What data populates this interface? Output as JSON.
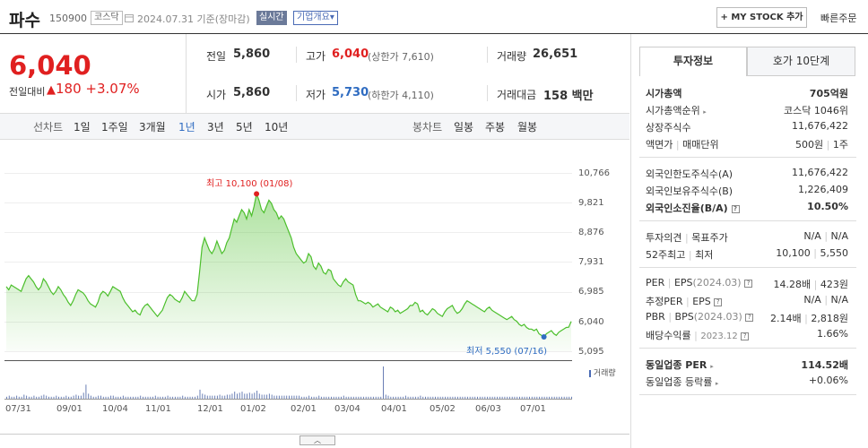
{
  "stock": {
    "name": "파수",
    "code": "150900",
    "market": "코스닥",
    "date": "2024.07.31",
    "basis": "기준(장마감)",
    "realtime": "실시간",
    "corp_overview": "기업개요",
    "corp_overview_arrow": "▾",
    "mystock": "+ MY STOCK 추가",
    "quick_order": "빠른주문",
    "price": "6,040",
    "change_label": "전일대비",
    "change_arrow": "▲",
    "change": "180",
    "change_pct": "+3.07%"
  },
  "summary": {
    "prev_label": "전일",
    "prev": "5,860",
    "high_label": "고가",
    "high": "6,040",
    "upper_label": "(상한가",
    "upper": "7,610",
    "upper_close": ")",
    "volume_label": "거래량",
    "volume": "26,651",
    "open_label": "시가",
    "open": "5,860",
    "low_label": "저가",
    "low": "5,730",
    "lower_label": "(하한가",
    "lower": "4,110",
    "lower_close": ")",
    "value_label": "거래대금",
    "value": "158",
    "value_unit": "백만"
  },
  "tabs": {
    "line_chart": "선차트",
    "periods": [
      "1일",
      "1주일",
      "3개월",
      "1년",
      "3년",
      "5년",
      "10년"
    ],
    "active_period": "1년",
    "candle_chart": "봉차트",
    "candles": [
      "일봉",
      "주봉",
      "월봉"
    ]
  },
  "chart_data": {
    "type": "area",
    "x_labels": [
      "07/31",
      "09/01",
      "10/04",
      "11/01",
      "12/01",
      "01/02",
      "02/01",
      "03/04",
      "04/01",
      "05/02",
      "06/03",
      "07/01"
    ],
    "y_ticks": [
      10766,
      9821,
      8876,
      7931,
      6985,
      6040,
      5095
    ],
    "y_tick_labels": [
      "10,766",
      "9,821",
      "8,876",
      "7,931",
      "6,985",
      "6,040",
      "5,095"
    ],
    "ylim": [
      5095,
      10766
    ],
    "values": [
      7150,
      7050,
      7200,
      7150,
      7100,
      7050,
      7000,
      7200,
      7400,
      7500,
      7400,
      7300,
      7150,
      7050,
      7150,
      7400,
      7300,
      7150,
      7000,
      6900,
      7000,
      7150,
      7050,
      6900,
      6800,
      6650,
      6550,
      6700,
      6900,
      7050,
      7000,
      6950,
      6850,
      6700,
      6600,
      6550,
      6500,
      6650,
      6900,
      7000,
      6950,
      6850,
      7000,
      7150,
      7100,
      7050,
      7000,
      6800,
      6650,
      6550,
      6450,
      6350,
      6400,
      6300,
      6250,
      6450,
      6550,
      6600,
      6500,
      6400,
      6300,
      6200,
      6300,
      6400,
      6600,
      6800,
      6900,
      6850,
      6750,
      6700,
      6650,
      6800,
      7000,
      6900,
      6800,
      6700,
      6700,
      6900,
      7600,
      8400,
      8700,
      8500,
      8300,
      8200,
      8350,
      8600,
      8400,
      8200,
      8300,
      8550,
      8700,
      9000,
      9300,
      9200,
      9400,
      9600,
      9500,
      9300,
      9600,
      9400,
      9700,
      10100,
      9900,
      9600,
      9500,
      9700,
      9900,
      9800,
      9600,
      9500,
      9300,
      9400,
      9300,
      9100,
      8900,
      8700,
      8400,
      8200,
      8100,
      8000,
      7900,
      7950,
      8200,
      8100,
      7800,
      7700,
      7900,
      7800,
      7600,
      7550,
      7700,
      7650,
      7400,
      7300,
      7200,
      7150,
      7300,
      7400,
      7300,
      7250,
      7200,
      6900,
      6700,
      6700,
      6650,
      6600,
      6650,
      6600,
      6500,
      6550,
      6600,
      6500,
      6450,
      6400,
      6350,
      6500,
      6450,
      6350,
      6400,
      6300,
      6350,
      6400,
      6450,
      6550,
      6550,
      6650,
      6600,
      6350,
      6400,
      6300,
      6250,
      6350,
      6450,
      6400,
      6300,
      6250,
      6200,
      6350,
      6450,
      6500,
      6550,
      6400,
      6300,
      6350,
      6450,
      6600,
      6700,
      6650,
      6600,
      6550,
      6500,
      6450,
      6400,
      6350,
      6450,
      6500,
      6400,
      6350,
      6300,
      6250,
      6200,
      6150,
      6100,
      6150,
      6200,
      6100,
      6050,
      5950,
      5900,
      5950,
      5850,
      5800,
      5800,
      5750,
      5800,
      5650,
      5600,
      5550,
      5650,
      5700,
      5750,
      5650,
      5600,
      5700,
      5750,
      5800,
      5850,
      5860,
      6040
    ],
    "volume": [
      2,
      3,
      2,
      2,
      3,
      2,
      2,
      4,
      3,
      2,
      2,
      3,
      2,
      2,
      3,
      4,
      3,
      2,
      2,
      2,
      3,
      2,
      2,
      2,
      3,
      2,
      2,
      3,
      4,
      3,
      3,
      6,
      14,
      5,
      3,
      2,
      2,
      3,
      3,
      2,
      2,
      2,
      3,
      3,
      2,
      2,
      2,
      3,
      2,
      2,
      2,
      2,
      2,
      2,
      3,
      2,
      2,
      2,
      2,
      2,
      3,
      2,
      2,
      2,
      2,
      3,
      2,
      2,
      2,
      2,
      2,
      3,
      2,
      2,
      2,
      2,
      2,
      3,
      9,
      5,
      4,
      3,
      3,
      3,
      3,
      3,
      4,
      3,
      3,
      4,
      4,
      5,
      7,
      5,
      6,
      7,
      5,
      5,
      6,
      5,
      6,
      8,
      5,
      4,
      4,
      4,
      5,
      4,
      3,
      3,
      3,
      3,
      3,
      3,
      3,
      3,
      3,
      3,
      3,
      2,
      2,
      2,
      3,
      2,
      2,
      2,
      3,
      2,
      2,
      2,
      2,
      2,
      2,
      2,
      2,
      2,
      3,
      2,
      2,
      2,
      2,
      2,
      2,
      2,
      2,
      2,
      2,
      2,
      2,
      2,
      2,
      2,
      32,
      4,
      3,
      2,
      2,
      2,
      2,
      2,
      2,
      3,
      2,
      2,
      2,
      2,
      2,
      3,
      2,
      2,
      2,
      2,
      2,
      2,
      2,
      2,
      2,
      2,
      2,
      2,
      2,
      2,
      2,
      2,
      2,
      2,
      2,
      2,
      2,
      2,
      2,
      2,
      2,
      2,
      2,
      2,
      2,
      2,
      2,
      2,
      2,
      2,
      2,
      2,
      2,
      2,
      2,
      2,
      2,
      2,
      2,
      2,
      2,
      2,
      2,
      2,
      2,
      2,
      2,
      2,
      2,
      2,
      2,
      2,
      2,
      2,
      2,
      2,
      2
    ],
    "high_label": "최고",
    "high_value": "10,100",
    "high_date": "(01/08)",
    "low_label": "최저",
    "low_value": "5,550",
    "low_date": "(07/16)",
    "volume_legend": "거래량",
    "series_color": "#4cbf2c",
    "grid": true
  },
  "right_panel": {
    "tabs": [
      "투자정보",
      "호가 10단계"
    ],
    "active_tab": "투자정보",
    "rows1": [
      {
        "label": "시가총액",
        "value": "705억원"
      },
      {
        "label": "시가총액순위",
        "value": "코스닥 1046위"
      },
      {
        "label": "상장주식수",
        "value": "11,676,422"
      },
      {
        "label": "액면가",
        "label2": "매매단위",
        "value": "500원",
        "value2": "1주"
      }
    ],
    "rows2": [
      {
        "label": "외국인한도주식수(A)",
        "value": "11,676,422"
      },
      {
        "label": "외국인보유주식수(B)",
        "value": "1,226,409"
      },
      {
        "label": "외국인소진율(B/A)",
        "value": "10.50%"
      }
    ],
    "rows3": [
      {
        "label": "투자의견",
        "label2": "목표주가",
        "value": "N/A",
        "value2": "N/A"
      },
      {
        "label": "52주최고",
        "label2": "최저",
        "value": "10,100",
        "value2": "5,550"
      }
    ],
    "rows4": [
      {
        "label": "PER",
        "label2": "EPS",
        "sub": "(2024.03)",
        "value": "14.28배",
        "value2": "423원"
      },
      {
        "label": "추정PER",
        "label2": "EPS",
        "value": "N/A",
        "value2": "N/A"
      },
      {
        "label": "PBR",
        "label2": "BPS",
        "sub": "(2024.03)",
        "value": "2.14배",
        "value2": "2,818원"
      },
      {
        "label": "배당수익률",
        "sub": "2023.12",
        "value": "1.66%"
      }
    ],
    "rows5": [
      {
        "label": "동일업종 PER",
        "value": "114.52배"
      },
      {
        "label": "동일업종 등락률",
        "value": "+0.06%"
      }
    ]
  },
  "colors": {
    "up": "#e02020",
    "down": "#2f6cc1",
    "line": "#4cbf2c"
  }
}
